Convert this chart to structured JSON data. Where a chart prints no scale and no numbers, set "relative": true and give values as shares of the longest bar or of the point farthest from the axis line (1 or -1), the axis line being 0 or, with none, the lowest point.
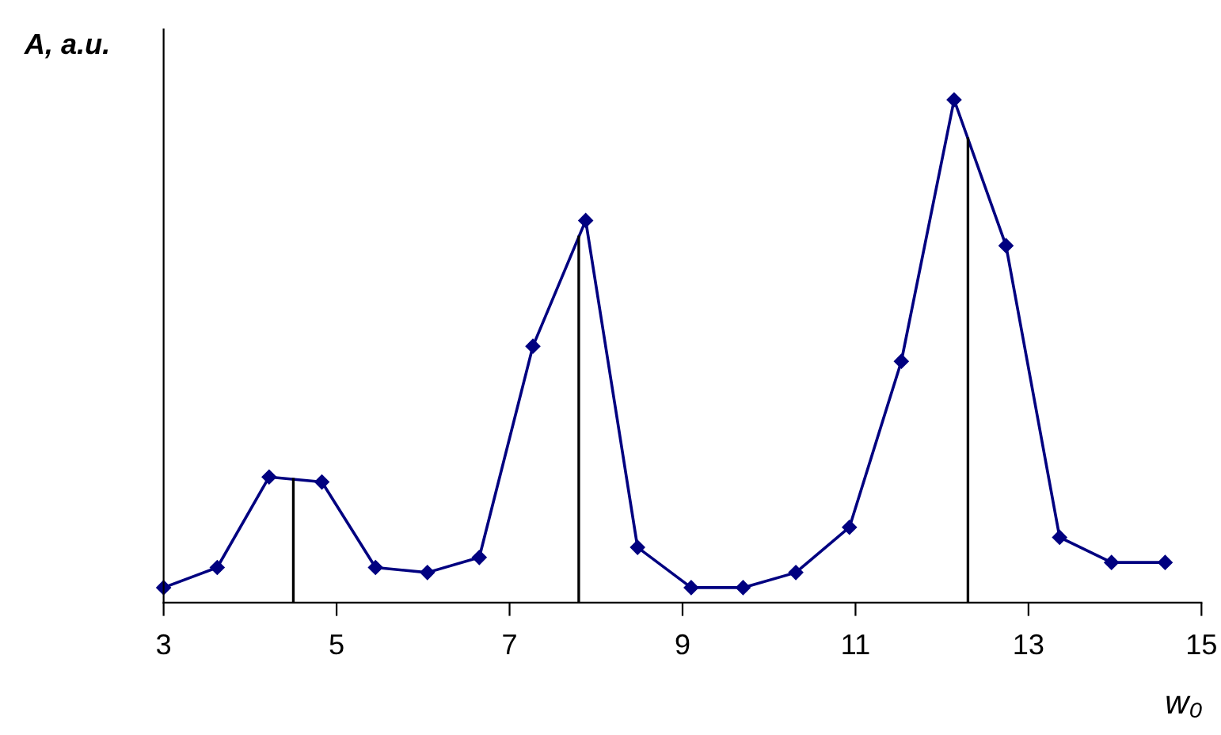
{
  "chart_data": {
    "type": "line",
    "relative": true,
    "ylabel": "A, a.u.",
    "xlabel": "w₀",
    "x": [
      3.0,
      3.62,
      4.22,
      4.83,
      5.45,
      6.05,
      6.65,
      7.27,
      7.88,
      8.48,
      9.1,
      9.7,
      10.31,
      10.93,
      11.53,
      12.14,
      12.74,
      13.36,
      13.96,
      14.58
    ],
    "series": [
      {
        "color": "#000080",
        "values": [
          0.03,
          0.07,
          0.25,
          0.24,
          0.07,
          0.06,
          0.09,
          0.51,
          0.76,
          0.11,
          0.03,
          0.03,
          0.06,
          0.15,
          0.48,
          1.0,
          0.71,
          0.13,
          0.08,
          0.08
        ]
      }
    ],
    "xlim": [
      3,
      15
    ],
    "xticks": [
      3,
      5,
      7,
      9,
      11,
      13,
      15
    ],
    "ref_lines": [
      {
        "axis": "x",
        "value": 4.5,
        "color": "#000000"
      },
      {
        "axis": "x",
        "value": 7.8,
        "color": "#000000"
      },
      {
        "axis": "x",
        "value": 12.3,
        "color": "#000000"
      }
    ],
    "marker": "diamond",
    "line_style": "solid",
    "grid": false,
    "legend": false
  }
}
